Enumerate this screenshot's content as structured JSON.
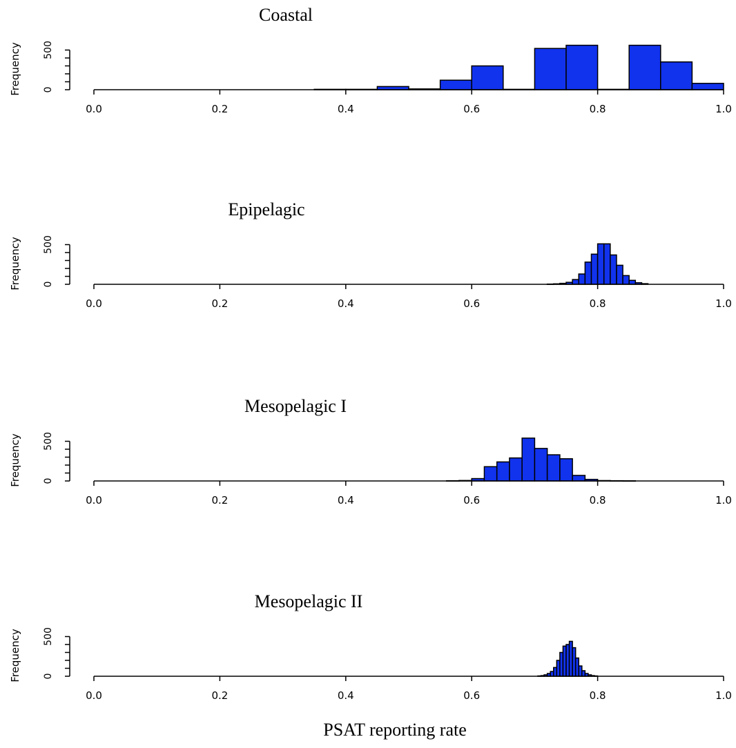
{
  "x_label": "PSAT reporting rate",
  "colors": {
    "bar_fill": "#1133ee",
    "bar_stroke": "#000000",
    "axis": "#000000"
  },
  "chart_data": [
    {
      "type": "bar",
      "title": "Coastal",
      "ylabel": "Frequency",
      "xlim": [
        0,
        1
      ],
      "xticks": [
        "0.0",
        "0.2",
        "0.4",
        "0.6",
        "0.8",
        "1.0"
      ],
      "yticks": [
        "0",
        "500"
      ],
      "ylim": [
        0,
        540
      ],
      "bin_edges": [
        0.35,
        0.4,
        0.45,
        0.5,
        0.55,
        0.6,
        0.65,
        0.7,
        0.75,
        0.8,
        0.85,
        0.9,
        0.95,
        1.0
      ],
      "values": [
        5,
        5,
        40,
        10,
        120,
        300,
        5,
        520,
        560,
        5,
        560,
        350,
        80
      ]
    },
    {
      "type": "bar",
      "title": "Epipelagic",
      "ylabel": "Frequency",
      "xlim": [
        0,
        1
      ],
      "xticks": [
        "0.0",
        "0.2",
        "0.4",
        "0.6",
        "0.8",
        "1.0"
      ],
      "yticks": [
        "0",
        "500"
      ],
      "ylim": [
        0,
        540
      ],
      "bin_edges": [
        0.72,
        0.73,
        0.74,
        0.75,
        0.76,
        0.77,
        0.78,
        0.79,
        0.8,
        0.81,
        0.82,
        0.83,
        0.84,
        0.85,
        0.86,
        0.87,
        0.88
      ],
      "values": [
        3,
        6,
        12,
        25,
        60,
        130,
        280,
        380,
        510,
        510,
        370,
        240,
        110,
        50,
        20,
        8
      ]
    },
    {
      "type": "bar",
      "title": "Mesopelagic I",
      "ylabel": "Frequency",
      "xlim": [
        0,
        1
      ],
      "xticks": [
        "0.0",
        "0.2",
        "0.4",
        "0.6",
        "0.8",
        "1.0"
      ],
      "yticks": [
        "0",
        "500"
      ],
      "ylim": [
        0,
        540
      ],
      "bin_edges": [
        0.56,
        0.58,
        0.6,
        0.62,
        0.64,
        0.66,
        0.68,
        0.7,
        0.72,
        0.74,
        0.76,
        0.78,
        0.8,
        0.82,
        0.84,
        0.86
      ],
      "values": [
        3,
        6,
        30,
        180,
        240,
        290,
        540,
        410,
        330,
        280,
        70,
        20,
        5,
        3,
        2
      ]
    },
    {
      "type": "bar",
      "title": "Mesopelagic II",
      "ylabel": "Frequency",
      "xlim": [
        0,
        1
      ],
      "xticks": [
        "0.0",
        "0.2",
        "0.4",
        "0.6",
        "0.8",
        "1.0"
      ],
      "yticks": [
        "0",
        "500"
      ],
      "ylim": [
        0,
        540
      ],
      "bin_edges": [
        0.705,
        0.71,
        0.715,
        0.72,
        0.725,
        0.73,
        0.735,
        0.74,
        0.745,
        0.75,
        0.755,
        0.76,
        0.765,
        0.77,
        0.775,
        0.78,
        0.785,
        0.79,
        0.795,
        0.8
      ],
      "values": [
        4,
        8,
        18,
        35,
        60,
        110,
        200,
        300,
        380,
        400,
        440,
        360,
        230,
        130,
        70,
        35,
        18,
        8,
        4
      ]
    }
  ]
}
